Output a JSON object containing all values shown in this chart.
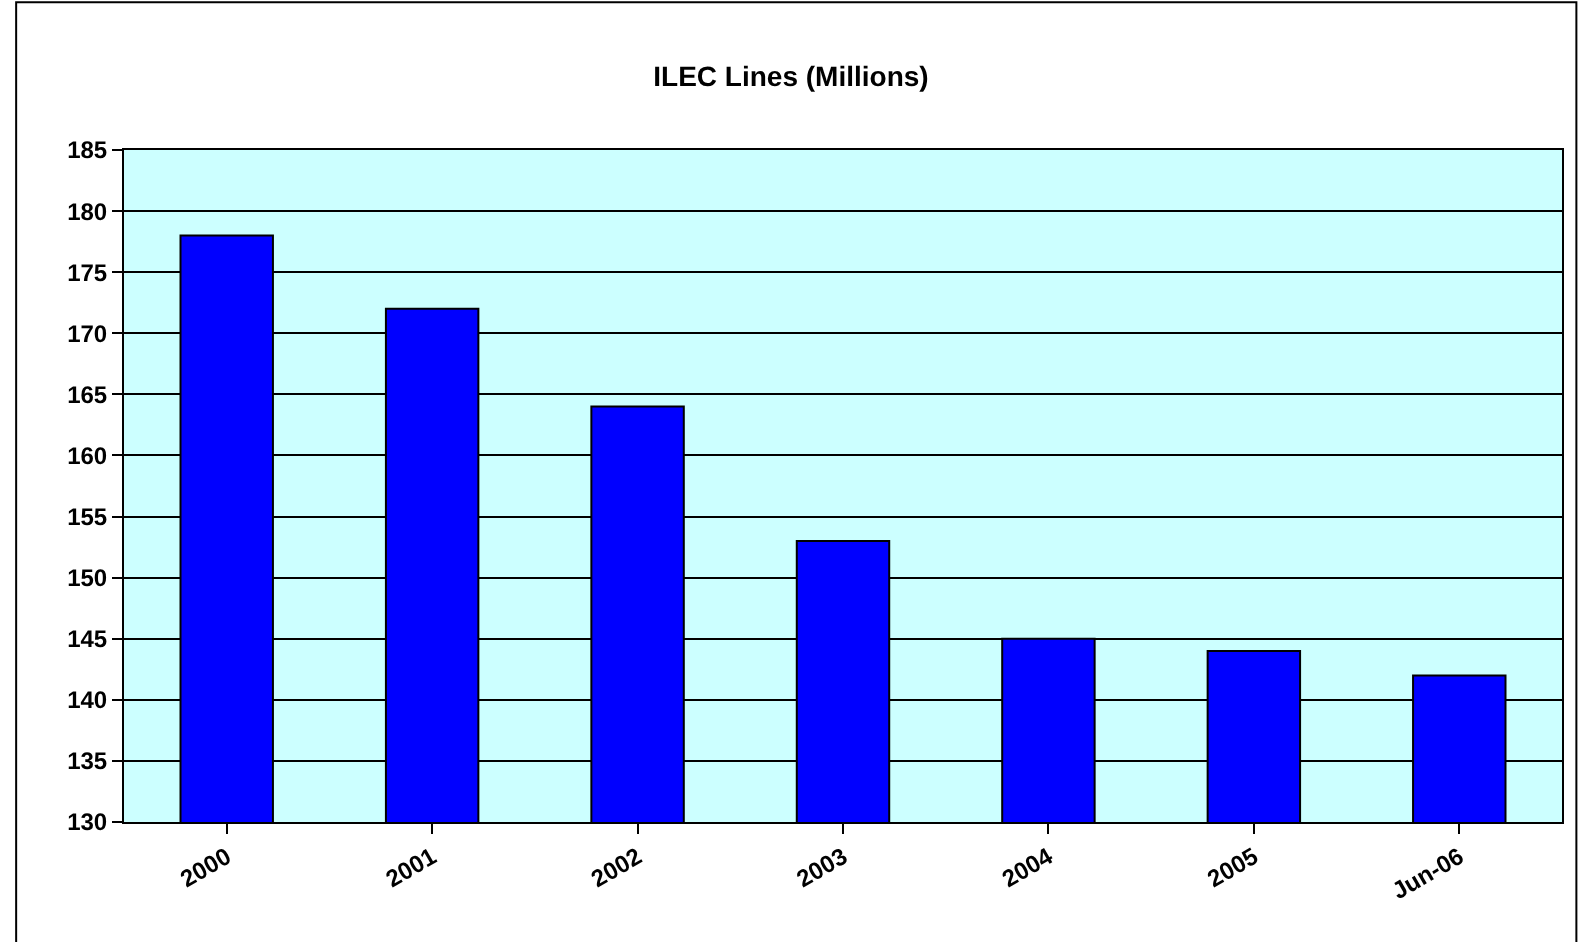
{
  "chart_data": {
    "type": "bar",
    "title": "ILEC Lines (Millions)",
    "categories": [
      "2000",
      "2001",
      "2002",
      "2003",
      "2004",
      "2005",
      "Jun-06"
    ],
    "values": [
      178,
      172,
      164,
      153,
      145,
      144,
      142
    ],
    "color": "#0000ff",
    "ylim": [
      130,
      185
    ],
    "yticks": [
      130,
      135,
      140,
      145,
      150,
      155,
      160,
      165,
      170,
      175,
      180,
      185
    ],
    "grid": "y",
    "legend": false
  }
}
